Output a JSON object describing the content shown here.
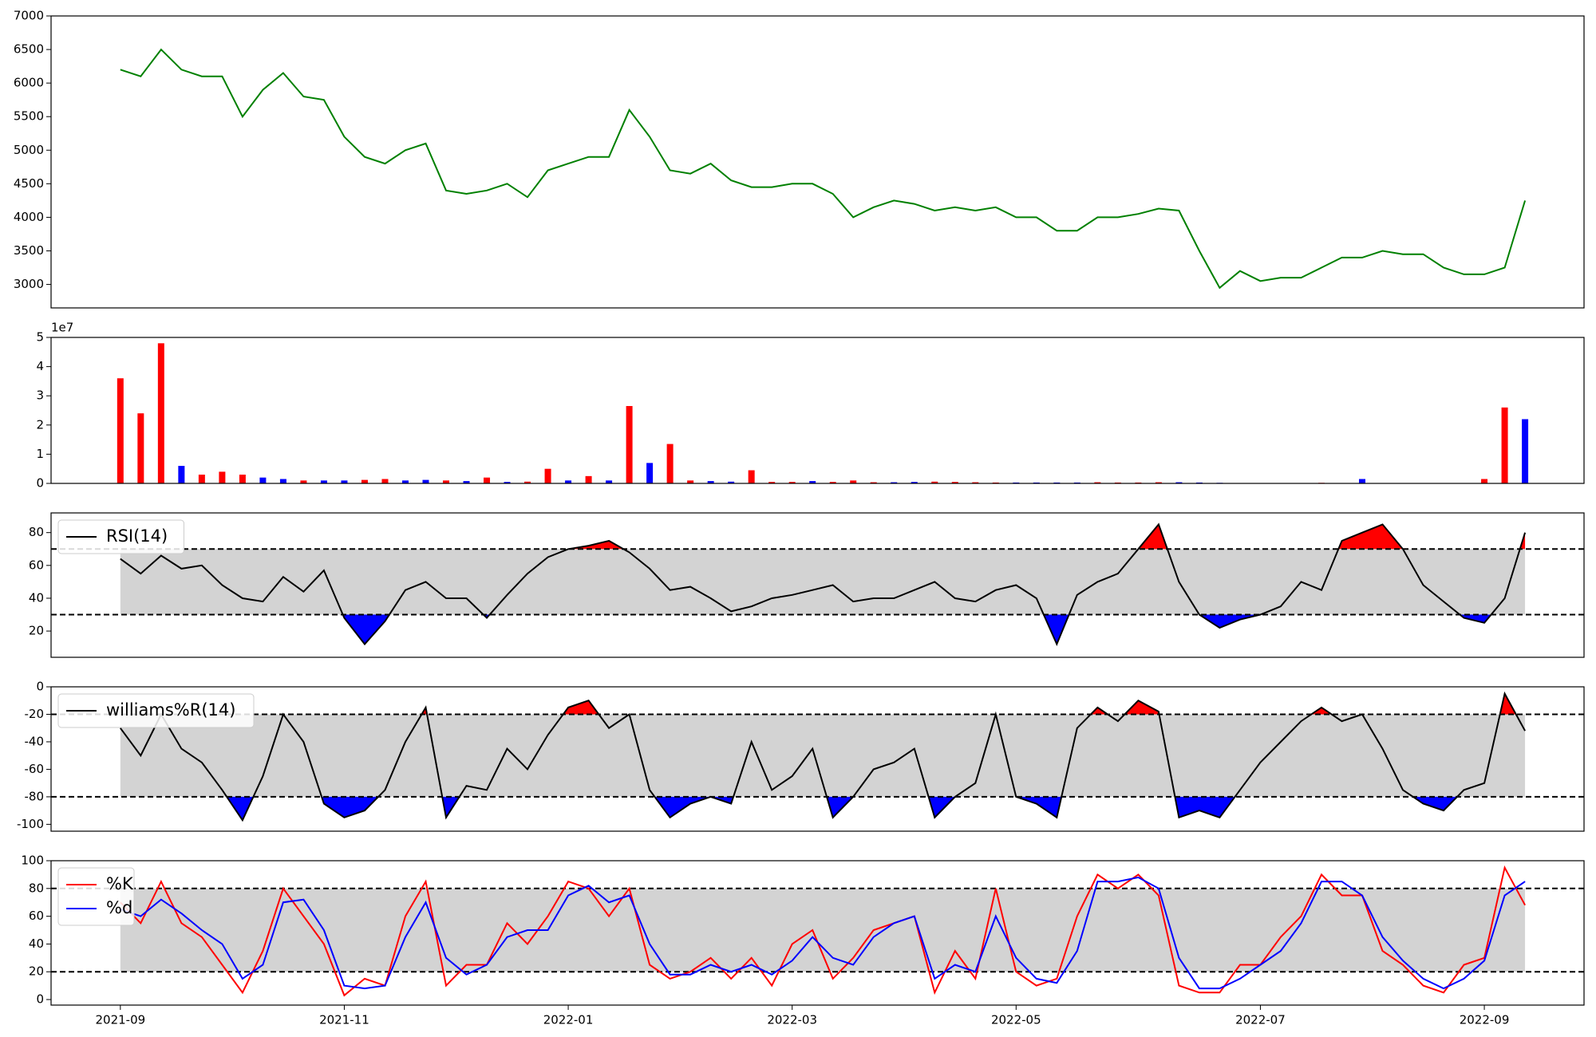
{
  "chart_data": [
    {
      "type": "line",
      "color": "green",
      "values": [
        6200,
        6100,
        6500,
        6200,
        6100,
        6100,
        5500,
        5900,
        6150,
        5800,
        5750,
        5200,
        4900,
        4800,
        5000,
        5100,
        4400,
        4350,
        4400,
        4500,
        4300,
        4700,
        4800,
        4900,
        4900,
        5600,
        5200,
        4700,
        4650,
        4800,
        4550,
        4450,
        4450,
        4500,
        4500,
        4350,
        4000,
        4150,
        4250,
        4200,
        4100,
        4150,
        4100,
        4150,
        4000,
        4000,
        3800,
        3800,
        4000,
        4000,
        4050,
        4130,
        4100,
        3500,
        2950,
        3200,
        3050,
        3100,
        3100,
        3250,
        3400,
        3400,
        3500,
        3450,
        3450,
        3250,
        3150,
        3150,
        3250,
        4250
      ],
      "ylim": [
        2650,
        7000
      ],
      "yticks": [
        3000,
        3500,
        4000,
        4500,
        5000,
        5500,
        6000,
        6500,
        7000
      ]
    },
    {
      "type": "bar",
      "offset_label": "1e7",
      "values": [
        3.6,
        2.4,
        4.8,
        0.6,
        0.3,
        0.4,
        0.3,
        0.2,
        0.15,
        0.1,
        0.1,
        0.1,
        0.12,
        0.15,
        0.1,
        0.12,
        0.1,
        0.08,
        0.2,
        0.05,
        0.06,
        0.5,
        0.1,
        0.25,
        0.1,
        2.65,
        0.7,
        1.35,
        0.1,
        0.08,
        0.06,
        0.45,
        0.05,
        0.05,
        0.08,
        0.05,
        0.1,
        0.04,
        0.04,
        0.05,
        0.06,
        0.05,
        0.04,
        0.03,
        0.03,
        0.03,
        0.03,
        0.03,
        0.04,
        0.03,
        0.03,
        0.04,
        0.04,
        0.03,
        0.02,
        0.01,
        0.01,
        0.01,
        0.01,
        0.02,
        0.01,
        0.15,
        0.01,
        0.01,
        0.01,
        0.01,
        0.01,
        0.15,
        2.6,
        2.2
      ],
      "colors": [
        "red",
        "red",
        "red",
        "blue",
        "red",
        "red",
        "red",
        "blue",
        "blue",
        "red",
        "blue",
        "blue",
        "red",
        "red",
        "blue",
        "blue",
        "red",
        "blue",
        "red",
        "blue",
        "red",
        "red",
        "blue",
        "red",
        "blue",
        "red",
        "blue",
        "red",
        "red",
        "blue",
        "blue",
        "red",
        "red",
        "red",
        "blue",
        "red",
        "red",
        "red",
        "blue",
        "blue",
        "red",
        "red",
        "red",
        "red",
        "blue",
        "blue",
        "blue",
        "blue",
        "red",
        "red",
        "red",
        "red",
        "blue",
        "blue",
        "blue",
        "blue",
        "blue",
        "red",
        "blue",
        "red",
        "blue",
        "blue",
        "blue",
        "red",
        "blue",
        "red",
        "blue",
        "red",
        "red",
        "blue"
      ],
      "ylim": [
        0,
        5
      ],
      "yticks": [
        0,
        1,
        2,
        3,
        4,
        5
      ]
    },
    {
      "type": "band_line",
      "upper": 70,
      "lower": 30,
      "band_color": "lightgray",
      "over_color": "red",
      "under_color": "blue",
      "legend": "upper left",
      "series": [
        {
          "name": "RSI(14)",
          "color": "black",
          "values": [
            64,
            55,
            66,
            58,
            60,
            48,
            40,
            38,
            53,
            44,
            57,
            28,
            12,
            26,
            45,
            50,
            40,
            40,
            28,
            42,
            55,
            65,
            70,
            72,
            75,
            68,
            58,
            45,
            47,
            40,
            32,
            35,
            40,
            42,
            45,
            48,
            38,
            40,
            40,
            45,
            50,
            40,
            38,
            45,
            48,
            40,
            12,
            42,
            50,
            55,
            70,
            85,
            50,
            30,
            22,
            27,
            30,
            35,
            50,
            45,
            75,
            80,
            85,
            70,
            48,
            38,
            28,
            25,
            40,
            80
          ]
        }
      ],
      "ylim": [
        4,
        92
      ],
      "yticks": [
        20,
        40,
        60,
        80
      ]
    },
    {
      "type": "band_line",
      "upper": -20,
      "lower": -80,
      "band_color": "lightgray",
      "over_color": "red",
      "under_color": "blue",
      "legend": "upper left",
      "series": [
        {
          "name": "williams%R(14)",
          "color": "black",
          "values": [
            -30,
            -50,
            -20,
            -45,
            -55,
            -75,
            -97,
            -65,
            -20,
            -40,
            -85,
            -95,
            -90,
            -75,
            -40,
            -15,
            -95,
            -72,
            -75,
            -45,
            -60,
            -35,
            -15,
            -10,
            -30,
            -20,
            -75,
            -95,
            -85,
            -80,
            -85,
            -40,
            -75,
            -65,
            -45,
            -95,
            -80,
            -60,
            -55,
            -45,
            -95,
            -80,
            -70,
            -20,
            -80,
            -85,
            -95,
            -30,
            -15,
            -25,
            -10,
            -18,
            -95,
            -90,
            -95,
            -75,
            -55,
            -40,
            -25,
            -15,
            -25,
            -20,
            -45,
            -75,
            -85,
            -90,
            -75,
            -70,
            -5,
            -32
          ]
        }
      ],
      "ylim": [
        -105,
        0
      ],
      "yticks": [
        -100,
        -80,
        -60,
        -40,
        -20,
        0
      ]
    },
    {
      "type": "band_line",
      "upper": 80,
      "lower": 20,
      "band_color": "lightgray",
      "legend": "upper left",
      "categories": [
        "2021-09",
        null,
        null,
        null,
        null,
        null,
        null,
        null,
        null,
        null,
        null,
        "2021-11",
        null,
        null,
        null,
        null,
        null,
        null,
        null,
        null,
        null,
        null,
        "2022-01",
        null,
        null,
        null,
        null,
        null,
        null,
        null,
        null,
        null,
        null,
        "2022-03",
        null,
        null,
        null,
        null,
        null,
        null,
        null,
        null,
        null,
        null,
        "2022-05",
        null,
        null,
        null,
        null,
        null,
        null,
        null,
        null,
        null,
        null,
        null,
        "2022-07",
        null,
        null,
        null,
        null,
        null,
        null,
        null,
        null,
        null,
        null,
        "2022-09",
        null,
        null
      ],
      "series": [
        {
          "name": "%K",
          "color": "red",
          "values": [
            70,
            55,
            85,
            55,
            45,
            25,
            5,
            35,
            80,
            60,
            40,
            3,
            15,
            10,
            60,
            85,
            10,
            25,
            25,
            55,
            40,
            60,
            85,
            80,
            60,
            80,
            25,
            15,
            20,
            30,
            15,
            30,
            10,
            40,
            50,
            15,
            30,
            50,
            55,
            60,
            5,
            35,
            15,
            80,
            20,
            10,
            15,
            60,
            90,
            80,
            90,
            75,
            10,
            5,
            5,
            25,
            25,
            45,
            60,
            90,
            75,
            75,
            35,
            25,
            10,
            5,
            25,
            30,
            95,
            68
          ]
        },
        {
          "name": "%d",
          "color": "blue",
          "values": [
            65,
            60,
            72,
            62,
            50,
            40,
            15,
            25,
            70,
            72,
            50,
            10,
            8,
            10,
            45,
            70,
            30,
            18,
            25,
            45,
            50,
            50,
            75,
            82,
            70,
            75,
            40,
            18,
            18,
            25,
            20,
            25,
            18,
            28,
            45,
            30,
            25,
            45,
            55,
            60,
            15,
            25,
            20,
            60,
            30,
            15,
            12,
            35,
            85,
            85,
            88,
            80,
            30,
            8,
            8,
            15,
            25,
            35,
            55,
            85,
            85,
            75,
            45,
            28,
            15,
            8,
            15,
            28,
            75,
            85
          ]
        }
      ],
      "ylim": [
        -4,
        100
      ],
      "yticks": [
        0,
        20,
        40,
        60,
        80,
        100
      ]
    }
  ]
}
